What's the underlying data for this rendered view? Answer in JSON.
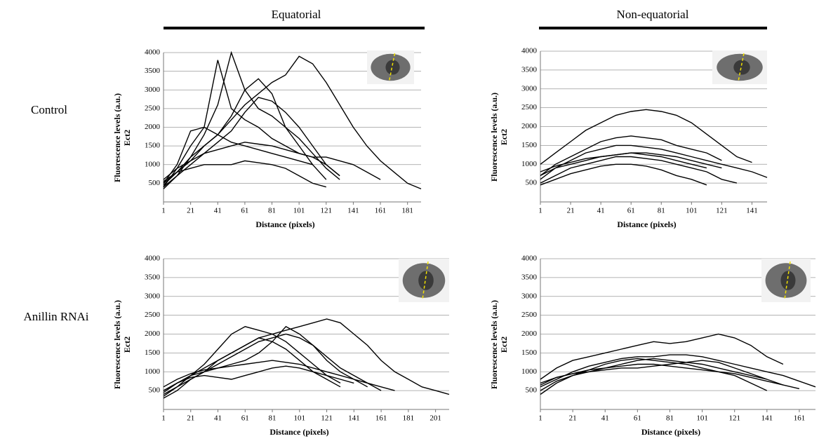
{
  "figure": {
    "columns": [
      "Equatorial",
      "Non-equatorial"
    ],
    "rows": [
      "Control",
      "Anillin RNAi"
    ]
  },
  "chart_data": [
    {
      "type": "line",
      "ylabel": "Fluorescence levels (a.u.)",
      "ylabel2": "Ect2",
      "xlabel": "Distance (pixels)",
      "x": [
        1,
        11,
        21,
        31,
        41,
        51,
        61,
        71,
        81,
        91,
        101,
        111,
        121,
        131,
        141,
        151,
        161,
        171,
        181,
        191
      ],
      "xlim": [
        1,
        191
      ],
      "xticks": [
        1,
        21,
        41,
        61,
        81,
        101,
        121,
        141,
        161,
        181
      ],
      "ylim": [
        0,
        4000
      ],
      "yticks": [
        500,
        1000,
        1500,
        2000,
        2500,
        3000,
        3500,
        4000
      ],
      "grid": true,
      "series": [
        {
          "color": "#000000",
          "values": [
            500,
            800,
            1100,
            1500,
            1800,
            2200,
            2600,
            2900,
            3200,
            3400,
            3900,
            3700,
            3200,
            2600,
            2000,
            1500,
            1100,
            800,
            500,
            350
          ]
        },
        {
          "color": "#000000",
          "values": [
            400,
            900,
            1500,
            2000,
            3800,
            2500,
            2200,
            2000,
            1700,
            1500,
            1300,
            1200,
            1000,
            700,
            null,
            null,
            null,
            null,
            null,
            null
          ]
        },
        {
          "color": "#000000",
          "values": [
            350,
            700,
            1200,
            1800,
            2600,
            4000,
            3000,
            2500,
            2300,
            2000,
            1700,
            1300,
            900,
            600,
            null,
            null,
            null,
            null,
            null,
            null
          ]
        },
        {
          "color": "#000000",
          "values": [
            450,
            800,
            1200,
            1500,
            1800,
            2300,
            3000,
            3300,
            2900,
            2000,
            1500,
            1000,
            600,
            null,
            null,
            null,
            null,
            null,
            null,
            null
          ]
        },
        {
          "color": "#000000",
          "values": [
            400,
            700,
            1000,
            1300,
            1600,
            1900,
            2400,
            2800,
            2700,
            2400,
            2000,
            1500,
            1000,
            700,
            null,
            null,
            null,
            null,
            null,
            null
          ]
        },
        {
          "color": "#000000",
          "values": [
            500,
            1000,
            1900,
            2000,
            1800,
            1600,
            1500,
            1400,
            1300,
            1200,
            1100,
            1000,
            null,
            null,
            null,
            null,
            null,
            null,
            null,
            null
          ]
        },
        {
          "color": "#000000",
          "values": [
            550,
            800,
            900,
            1000,
            1000,
            1000,
            1100,
            1050,
            1000,
            900,
            700,
            500,
            400,
            null,
            null,
            null,
            null,
            null,
            null,
            null
          ]
        },
        {
          "color": "#000000",
          "values": [
            600,
            900,
            1100,
            1300,
            1400,
            1500,
            1600,
            1550,
            1500,
            1400,
            1300,
            1200,
            1200,
            1100,
            1000,
            800,
            600,
            null,
            null,
            null
          ]
        }
      ]
    },
    {
      "type": "line",
      "ylabel": "Fluorescence levels (a.u.)",
      "ylabel2": "Ect2",
      "xlabel": "Distance (pixels)",
      "x": [
        1,
        11,
        21,
        31,
        41,
        51,
        61,
        71,
        81,
        91,
        101,
        111,
        121,
        131,
        141,
        151
      ],
      "xlim": [
        1,
        151
      ],
      "xticks": [
        1,
        21,
        41,
        61,
        81,
        101,
        121,
        141
      ],
      "ylim": [
        0,
        4000
      ],
      "yticks": [
        500,
        1000,
        1500,
        2000,
        2500,
        3000,
        3500,
        4000
      ],
      "grid": true,
      "series": [
        {
          "color": "#000000",
          "values": [
            1000,
            1300,
            1600,
            1900,
            2100,
            2300,
            2400,
            2450,
            2400,
            2300,
            2100,
            1800,
            1500,
            1200,
            1050,
            null
          ]
        },
        {
          "color": "#000000",
          "values": [
            700,
            1000,
            1200,
            1400,
            1600,
            1700,
            1750,
            1700,
            1650,
            1500,
            1400,
            1300,
            1100,
            null,
            null,
            null
          ]
        },
        {
          "color": "#000000",
          "values": [
            600,
            900,
            1100,
            1300,
            1400,
            1500,
            1500,
            1450,
            1400,
            1300,
            1200,
            1100,
            1000,
            900,
            800,
            650
          ]
        },
        {
          "color": "#000000",
          "values": [
            500,
            700,
            900,
            1000,
            1100,
            1200,
            1200,
            1150,
            1100,
            1000,
            900,
            800,
            600,
            500,
            null,
            null
          ]
        },
        {
          "color": "#000000",
          "values": [
            700,
            900,
            1000,
            1100,
            1200,
            1250,
            1300,
            1250,
            1200,
            1100,
            1000,
            900,
            null,
            null,
            null,
            null
          ]
        },
        {
          "color": "#000000",
          "values": [
            450,
            600,
            750,
            850,
            950,
            1000,
            1000,
            950,
            850,
            700,
            600,
            450,
            null,
            null,
            null,
            null
          ]
        },
        {
          "color": "#000000",
          "values": [
            800,
            950,
            1050,
            1150,
            1200,
            1250,
            1300,
            1300,
            1250,
            1200,
            1100,
            1000,
            900,
            null,
            null,
            null
          ]
        }
      ]
    },
    {
      "type": "line",
      "ylabel": "Fluorescence levels (a.u.)",
      "ylabel2": "Ect2",
      "xlabel": "Distance (pixels)",
      "x": [
        1,
        11,
        21,
        31,
        41,
        51,
        61,
        71,
        81,
        91,
        101,
        111,
        121,
        131,
        141,
        151,
        161,
        171,
        181,
        191,
        201,
        211
      ],
      "xlim": [
        1,
        211
      ],
      "xticks": [
        1,
        21,
        41,
        61,
        81,
        101,
        121,
        141,
        161,
        181,
        201
      ],
      "ylim": [
        0,
        4000
      ],
      "yticks": [
        500,
        1000,
        1500,
        2000,
        2500,
        3000,
        3500,
        4000
      ],
      "grid": true,
      "series": [
        {
          "color": "#000000",
          "values": [
            500,
            700,
            900,
            1100,
            1300,
            1500,
            1700,
            1900,
            2000,
            2100,
            2200,
            2300,
            2400,
            2300,
            2000,
            1700,
            1300,
            1000,
            800,
            600,
            500,
            400
          ]
        },
        {
          "color": "#000000",
          "values": [
            400,
            600,
            900,
            1200,
            1600,
            2000,
            2200,
            2100,
            2000,
            1800,
            1500,
            1200,
            900,
            700,
            null,
            null,
            null,
            null,
            null,
            null,
            null,
            null
          ]
        },
        {
          "color": "#000000",
          "values": [
            350,
            600,
            800,
            1000,
            1200,
            1400,
            1600,
            1800,
            1900,
            2000,
            1900,
            1700,
            1400,
            1100,
            900,
            700,
            500,
            null,
            null,
            null,
            null,
            null
          ]
        },
        {
          "color": "#000000",
          "values": [
            450,
            700,
            900,
            1000,
            1100,
            1200,
            1300,
            1500,
            1800,
            2200,
            2000,
            1700,
            1300,
            1000,
            800,
            600,
            null,
            null,
            null,
            null,
            null,
            null
          ]
        },
        {
          "color": "#000000",
          "values": [
            600,
            800,
            950,
            1050,
            1100,
            1150,
            1200,
            1250,
            1300,
            1250,
            1200,
            1100,
            1000,
            900,
            800,
            700,
            600,
            500,
            null,
            null,
            null,
            null
          ]
        },
        {
          "color": "#000000",
          "values": [
            500,
            700,
            850,
            900,
            850,
            800,
            900,
            1000,
            1100,
            1150,
            1100,
            1000,
            900,
            800,
            700,
            null,
            null,
            null,
            null,
            null,
            null,
            null
          ]
        },
        {
          "color": "#000000",
          "values": [
            300,
            500,
            800,
            1000,
            1300,
            1500,
            1700,
            1900,
            1800,
            1600,
            1300,
            1000,
            800,
            600,
            null,
            null,
            null,
            null,
            null,
            null,
            null,
            null
          ]
        }
      ]
    },
    {
      "type": "line",
      "ylabel": "Fluorescence levels (a.u.)",
      "ylabel2": "Ect2",
      "xlabel": "Distance (pixels)",
      "x": [
        1,
        11,
        21,
        31,
        41,
        51,
        61,
        71,
        81,
        91,
        101,
        111,
        121,
        131,
        141,
        151,
        161,
        171
      ],
      "xlim": [
        1,
        171
      ],
      "xticks": [
        1,
        21,
        41,
        61,
        81,
        101,
        121,
        141,
        161
      ],
      "ylim": [
        0,
        4000
      ],
      "yticks": [
        500,
        1000,
        1500,
        2000,
        2500,
        3000,
        3500,
        4000
      ],
      "grid": true,
      "series": [
        {
          "color": "#000000",
          "values": [
            800,
            1100,
            1300,
            1400,
            1500,
            1600,
            1700,
            1800,
            1750,
            1800,
            1900,
            2000,
            1900,
            1700,
            1400,
            1200,
            null,
            null
          ]
        },
        {
          "color": "#000000",
          "values": [
            600,
            800,
            1000,
            1150,
            1250,
            1350,
            1400,
            1400,
            1450,
            1450,
            1400,
            1300,
            1200,
            1100,
            1000,
            900,
            750,
            600
          ]
        },
        {
          "color": "#000000",
          "values": [
            500,
            750,
            900,
            1000,
            1100,
            1200,
            1300,
            1350,
            1300,
            1250,
            1200,
            1100,
            1000,
            900,
            800,
            null,
            null,
            null
          ]
        },
        {
          "color": "#000000",
          "values": [
            700,
            850,
            950,
            1050,
            1100,
            1150,
            1200,
            1200,
            1150,
            1100,
            1050,
            1000,
            950,
            850,
            750,
            650,
            null,
            null
          ]
        },
        {
          "color": "#000000",
          "values": [
            400,
            700,
            900,
            1050,
            1200,
            1300,
            1350,
            1300,
            1250,
            1200,
            1100,
            1000,
            900,
            700,
            500,
            null,
            null,
            null
          ]
        },
        {
          "color": "#000000",
          "values": [
            650,
            850,
            950,
            1000,
            1050,
            1100,
            1100,
            1150,
            1200,
            1250,
            1300,
            1250,
            1100,
            950,
            800,
            650,
            550,
            null
          ]
        }
      ]
    }
  ]
}
